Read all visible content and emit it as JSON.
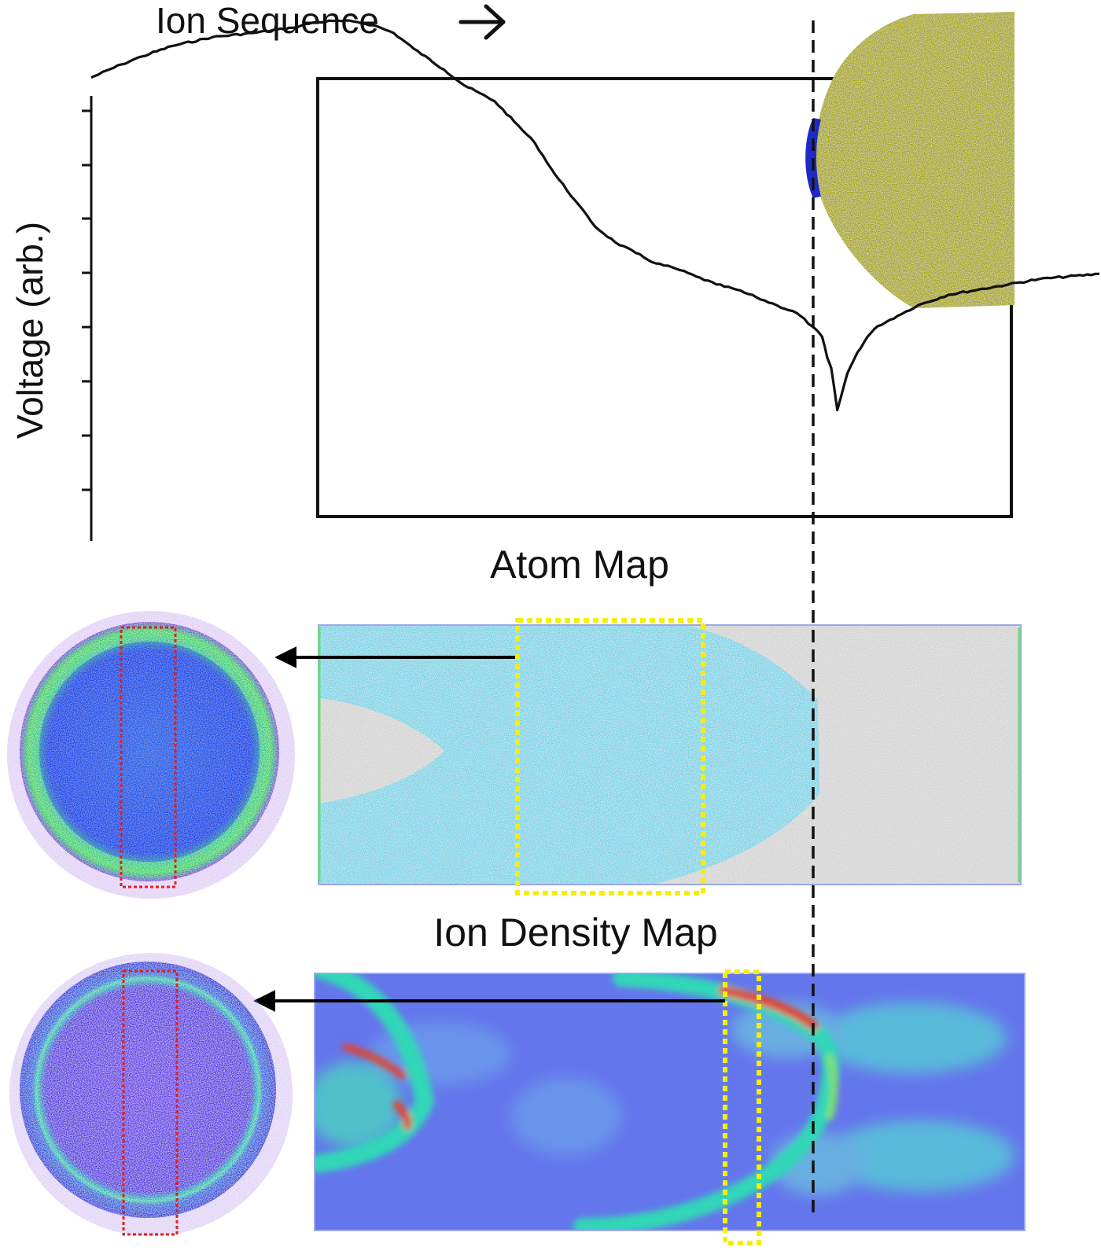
{
  "labels": {
    "ion_sequence": "Ion Sequence",
    "voltage_axis": "Voltage (arb.)",
    "atom_map": "Atom Map",
    "ion_density_map": "Ion Density Map"
  },
  "voltage_trace": {
    "x": [
      0,
      3,
      5,
      8,
      12,
      16,
      20,
      22,
      24,
      26,
      28,
      30,
      32,
      35,
      37,
      40,
      42,
      44,
      46,
      48,
      50,
      52,
      54,
      56,
      58,
      60,
      62,
      64,
      66,
      68,
      70,
      71.5,
      72.5,
      73,
      73.4,
      74,
      75,
      76,
      77,
      78,
      80,
      82,
      85,
      88,
      91,
      94,
      100
    ],
    "y": [
      0.885,
      0.91,
      0.925,
      0.945,
      0.962,
      0.97,
      0.98,
      0.99,
      0.993,
      0.992,
      0.985,
      0.97,
      0.94,
      0.9,
      0.87,
      0.84,
      0.8,
      0.76,
      0.7,
      0.65,
      0.6,
      0.57,
      0.55,
      0.53,
      0.52,
      0.505,
      0.49,
      0.48,
      0.465,
      0.45,
      0.435,
      0.41,
      0.39,
      0.35,
      0.33,
      0.25,
      0.32,
      0.36,
      0.39,
      0.41,
      0.43,
      0.45,
      0.47,
      0.48,
      0.49,
      0.5,
      0.51
    ]
  },
  "colors": {
    "trace": "#111111",
    "tip": "#a8a600",
    "tip_dark": "#8c8a00",
    "tip_interface": "#1e2ac8",
    "atom_cyan": "#55c8e0",
    "atom_grey": "#c8c8c8",
    "density_base": "#6476ec",
    "density_band": "#33d6b8",
    "density_hot": "#e4432c",
    "highlight_yellow": "#f5ef00",
    "slice_red": "#e02020",
    "disc_purple": "#9c4ee0"
  }
}
